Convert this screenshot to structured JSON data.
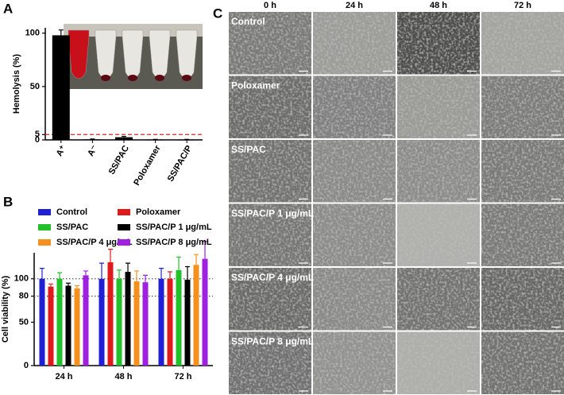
{
  "chart_data": [
    {
      "panel": "A",
      "type": "bar",
      "ylabel": "Hemolysis (%)",
      "categories": [
        "A⁺",
        "A⁻",
        "SS/PAC",
        "Poloxamer",
        "SS/PAC/P"
      ],
      "values": [
        98,
        0.5,
        2.5,
        0.3,
        0.3
      ],
      "errors": [
        5,
        0.4,
        0.8,
        0.2,
        0.2
      ],
      "color": "#000000",
      "ylim": [
        0,
        105
      ],
      "yticks": [
        0,
        5,
        50,
        100
      ],
      "reference_lines": [
        {
          "value": 5,
          "color": "#d62728"
        }
      ]
    },
    {
      "panel": "B",
      "type": "grouped_bar",
      "ylabel": "Cell viability (%)",
      "categories": [
        "24 h",
        "48 h",
        "72 h"
      ],
      "series": [
        {
          "name": "Control",
          "color": "#1f1fd6",
          "values": [
            100,
            100,
            100
          ],
          "errors": [
            12,
            18,
            12
          ]
        },
        {
          "name": "Poloxamer",
          "color": "#e01a1a",
          "values": [
            91,
            119,
            100
          ],
          "errors": [
            3,
            15,
            8
          ]
        },
        {
          "name": "SS/PAC",
          "color": "#22c02a",
          "values": [
            100,
            100,
            110
          ],
          "errors": [
            7,
            10,
            15
          ]
        },
        {
          "name": "SS/PAC/P 1 μg/mL",
          "color": "#000000",
          "values": [
            92,
            108,
            99
          ],
          "errors": [
            3,
            10,
            15
          ]
        },
        {
          "name": "SS/PAC/P 4 μg/mL",
          "color": "#f5901e",
          "values": [
            89,
            97,
            116
          ],
          "errors": [
            3,
            12,
            12
          ]
        },
        {
          "name": "SS/PAC/P 8 μg/mL",
          "color": "#a020e0",
          "values": [
            104,
            96,
            123
          ],
          "errors": [
            5,
            8,
            20
          ]
        }
      ],
      "ylim": [
        0,
        130
      ],
      "yticks": [
        0,
        50,
        80,
        100
      ],
      "reference_lines": [
        {
          "value": 100,
          "color": "#555555"
        },
        {
          "value": 80,
          "color": "#555555"
        }
      ]
    }
  ],
  "micrographs": {
    "panel": "C",
    "columns": [
      "0 h",
      "24 h",
      "48 h",
      "72 h"
    ],
    "rows": [
      "Control",
      "Poloxamer",
      "SS/PAC",
      "SS/PAC/P 1 μg/mL",
      "SS/PAC/P 4 μg/mL",
      "SS/PAC/P 8 μg/mL"
    ]
  }
}
